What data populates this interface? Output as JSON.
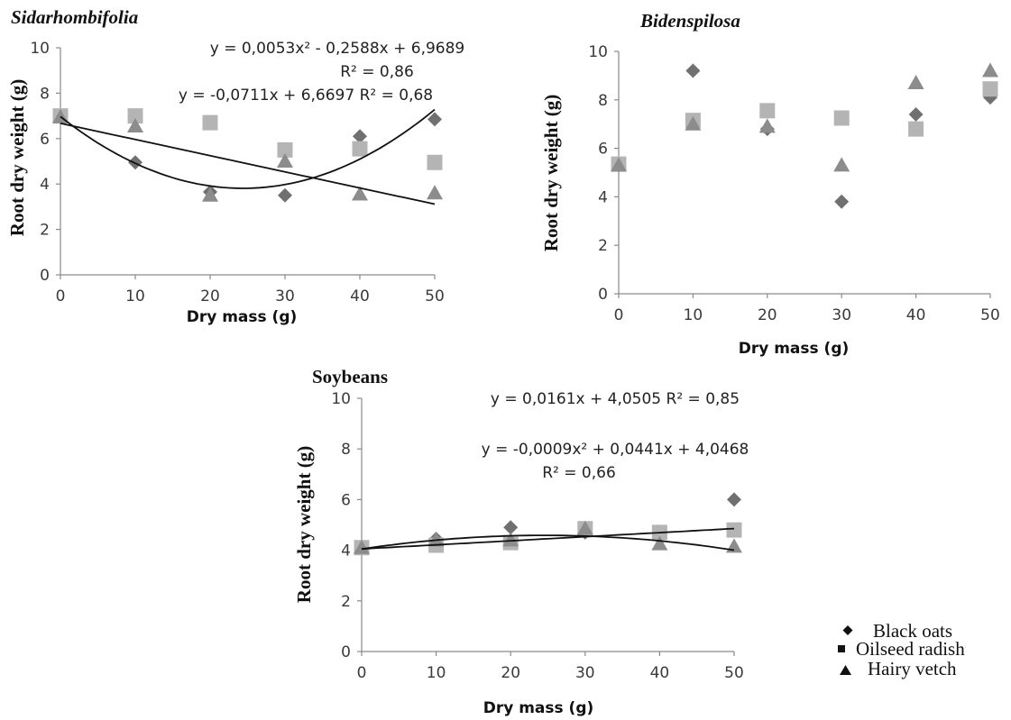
{
  "chart_data": [
    {
      "type": "scatter",
      "title": "Sidarhombifolia",
      "xlabel": "Dry mass (g)",
      "ylabel": "Root dry weight  (g)",
      "xlim": [
        0,
        50
      ],
      "ylim": [
        0,
        10
      ],
      "x_ticks": [
        "0",
        "10",
        "20",
        "30",
        "40",
        "50"
      ],
      "y_ticks": [
        "0",
        "2",
        "4",
        "6",
        "8",
        "10"
      ],
      "x": [
        0,
        10,
        20,
        30,
        40,
        50
      ],
      "series": [
        {
          "name": "Black oats",
          "marker": "diamond",
          "color": "#707070",
          "values": [
            7.0,
            4.95,
            3.65,
            3.5,
            6.1,
            6.85
          ]
        },
        {
          "name": "Oilseed radish",
          "marker": "square",
          "color": "#b4b4b4",
          "values": [
            7.0,
            7.0,
            6.7,
            5.5,
            5.55,
            4.95
          ]
        },
        {
          "name": "Hairy vetch",
          "marker": "triangle",
          "color": "#8c8c8c",
          "values": [
            6.95,
            6.55,
            3.5,
            5.0,
            3.55,
            3.6
          ]
        }
      ],
      "fits": [
        {
          "kind": "quadratic",
          "coef": [
            0.0053,
            -0.2588,
            6.9689
          ]
        },
        {
          "kind": "linear",
          "coef": [
            -0.0711,
            6.6697
          ]
        }
      ],
      "annotations": [
        "y = 0,0053x² - 0,2588x + 6,9689",
        "R² = 0,86",
        "y = -0,0711x + 6,6697  R² = 0,68"
      ]
    },
    {
      "type": "scatter",
      "title": "Bidenspilosa",
      "xlabel": "Dry mass (g)",
      "ylabel": "Root dry weight  (g)",
      "xlim": [
        0,
        50
      ],
      "ylim": [
        0,
        10
      ],
      "x_ticks": [
        "0",
        "10",
        "20",
        "30",
        "40",
        "50"
      ],
      "y_ticks": [
        "0",
        "2",
        "4",
        "6",
        "8",
        "10"
      ],
      "x": [
        0,
        10,
        20,
        30,
        40,
        50
      ],
      "series": [
        {
          "name": "Black oats",
          "marker": "diamond",
          "color": "#707070",
          "values": [
            5.3,
            9.2,
            6.8,
            3.8,
            7.4,
            8.1
          ]
        },
        {
          "name": "Oilseed radish",
          "marker": "square",
          "color": "#b4b4b4",
          "values": [
            5.35,
            7.15,
            7.55,
            7.25,
            6.8,
            8.45
          ]
        },
        {
          "name": "Hairy vetch",
          "marker": "triangle",
          "color": "#8c8c8c",
          "values": [
            5.3,
            7.0,
            6.9,
            5.3,
            8.7,
            9.2
          ]
        }
      ],
      "fits": [],
      "annotations": []
    },
    {
      "type": "scatter",
      "title": "Soybeans",
      "xlabel": "Dry mass (g)",
      "ylabel": "Root dry weight  (g)",
      "xlim": [
        0,
        50
      ],
      "ylim": [
        0,
        10
      ],
      "x_ticks": [
        "0",
        "10",
        "20",
        "30",
        "40",
        "50"
      ],
      "y_ticks": [
        "0",
        "2",
        "4",
        "6",
        "8",
        "10"
      ],
      "x": [
        0,
        10,
        20,
        30,
        40,
        50
      ],
      "series": [
        {
          "name": "Black oats",
          "marker": "diamond",
          "color": "#707070",
          "values": [
            4.1,
            4.45,
            4.9,
            4.7,
            4.7,
            6.0
          ]
        },
        {
          "name": "Oilseed radish",
          "marker": "square",
          "color": "#b4b4b4",
          "values": [
            4.1,
            4.2,
            4.3,
            4.85,
            4.7,
            4.8
          ]
        },
        {
          "name": "Hairy vetch",
          "marker": "triangle",
          "color": "#8c8c8c",
          "values": [
            4.1,
            4.4,
            4.4,
            4.85,
            4.25,
            4.15
          ]
        }
      ],
      "fits": [
        {
          "kind": "linear",
          "coef": [
            0.0161,
            4.0505
          ]
        },
        {
          "kind": "quadratic",
          "coef": [
            -0.0009,
            0.0441,
            4.0468
          ]
        }
      ],
      "annotations": [
        "y = 0,0161x + 4,0505  R² = 0,85",
        "y = -0,0009x² + 0,0441x + 4,0468",
        "R² = 0,66"
      ]
    }
  ],
  "legend": [
    {
      "label": "Black oats",
      "marker": "diamond-icon"
    },
    {
      "label": "Oilseed radish",
      "marker": "square-icon"
    },
    {
      "label": "Hairy vetch",
      "marker": "triangle-icon"
    }
  ]
}
